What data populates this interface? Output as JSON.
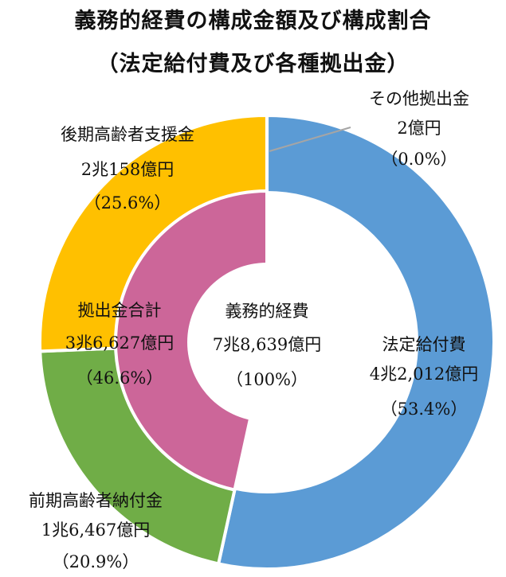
{
  "title": "義務的経費の構成金額及び構成割合",
  "subtitle": "（法定給付費及び各種拠出金）",
  "center": {
    "name": "義務的経費",
    "amount": "7兆8,639億円",
    "pct": "（100%）"
  },
  "colors": {
    "legal_benefits": "#5B9BD5",
    "early_elderly": "#70AD47",
    "late_elderly": "#FFC000",
    "other": "#A5A5A5",
    "inner_total": "#CC6699",
    "leader_line": "#A5A5A5"
  },
  "chart_data": {
    "type": "pie",
    "variant": "nested-donut",
    "title": "義務的経費の構成金額及び構成割合",
    "subtitle": "（法定給付費及び各種拠出金）",
    "center_label": "義務的経費",
    "center_value": "7兆8,639億円",
    "center_pct": "（100%）",
    "outer_ring": [
      {
        "name": "法定給付費",
        "amount": "4兆2,012億円",
        "pct_label": "（53.4%）",
        "value": 42012,
        "percent": 53.4
      },
      {
        "name": "前期高齢者納付金",
        "amount": "1兆6,467億円",
        "pct_label": "（20.9%）",
        "value": 16467,
        "percent": 20.9
      },
      {
        "name": "後期高齢者支援金",
        "amount": "2兆158億円",
        "pct_label": "（25.6%）",
        "value": 20158,
        "percent": 25.6
      },
      {
        "name": "その他拠出金",
        "amount": "2億円",
        "pct_label": "（0.0%）",
        "value": 2,
        "percent": 0.0
      }
    ],
    "inner_ring": [
      {
        "name": "法定給付費",
        "value": 42012,
        "percent": 53.4,
        "hidden": true
      },
      {
        "name": "拠出金合計",
        "amount": "3兆6,627億円",
        "pct_label": "（46.6%）",
        "value": 36627,
        "percent": 46.6
      }
    ]
  }
}
